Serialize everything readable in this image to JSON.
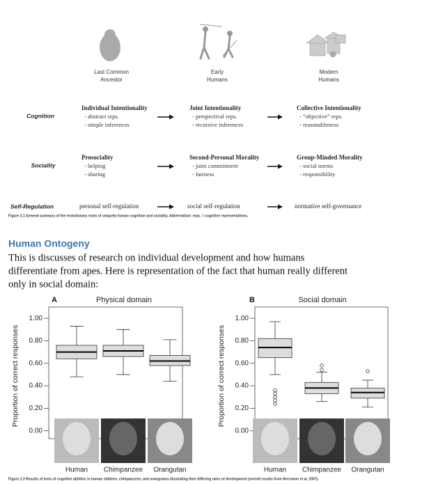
{
  "figure1": {
    "columns": [
      [
        "Last Common",
        "Ancestor"
      ],
      [
        "Early",
        "Humans"
      ],
      [
        "Modern",
        "Humans"
      ]
    ],
    "rows": [
      {
        "label": "Cognition",
        "cells": [
          {
            "title": "Individual Intentionality",
            "items": [
              "- abstract reps.",
              "- simple inferences"
            ]
          },
          {
            "title": "Joint Intentionality",
            "items": [
              "- perspectival reps.",
              "- recursive inferences"
            ]
          },
          {
            "title": "Collective Intentionality",
            "items": [
              "- “objective” reps.",
              "- reasonableness"
            ]
          }
        ]
      },
      {
        "label": "Sociality",
        "cells": [
          {
            "title": "Prosociality",
            "items": [
              "- helping",
              "- sharing"
            ]
          },
          {
            "title": "Second-Personal Morality",
            "items": [
              "- joint commitment",
              "- fairness"
            ]
          },
          {
            "title": "Group-Minded Morality",
            "items": [
              "- social norms",
              "- responsibility"
            ]
          }
        ]
      },
      {
        "label": "Self-Regulation",
        "cells": [
          {
            "title": "personal self-regulation",
            "items": []
          },
          {
            "title": "social self-regulation",
            "items": []
          },
          {
            "title": "normative self-governance",
            "items": []
          }
        ]
      }
    ],
    "caption": "Figure 2.1  General summary of the evolutionary roots of uniquely human cognition and sociality. Abbreviation: reps. = cognitive representations."
  },
  "heading": "Human Ontogeny",
  "paragraph": [
    "This is discusses of research on individual development and how humans",
    "differentiate from apes. Here is representation of the fact that human really different",
    "only in social domain:"
  ],
  "figure2": {
    "y_label": "Proportion of correct responses",
    "ylim": [
      -0.07,
      1.1
    ],
    "yticks": [
      {
        "value": 0,
        "label": "0.00"
      },
      {
        "value": 0.2,
        "label": "0.20"
      },
      {
        "value": 0.4,
        "label": "0.40"
      },
      {
        "value": 0.6,
        "label": "0.60"
      },
      {
        "value": 0.8,
        "label": "0.80"
      },
      {
        "value": 1,
        "label": "1.00"
      }
    ],
    "categories": [
      "Human",
      "Chimpanzee",
      "Orangutan"
    ],
    "panels": [
      {
        "letter": "A",
        "title": "Physical domain",
        "boxes": [
          {
            "min": 0.48,
            "q1": 0.64,
            "median": 0.7,
            "q3": 0.76,
            "max": 0.93,
            "outliers": []
          },
          {
            "min": 0.5,
            "q1": 0.66,
            "median": 0.71,
            "q3": 0.76,
            "max": 0.9,
            "outliers": []
          },
          {
            "min": 0.44,
            "q1": 0.58,
            "median": 0.62,
            "q3": 0.67,
            "max": 0.81,
            "outliers": []
          }
        ]
      },
      {
        "letter": "B",
        "title": "Social domain",
        "boxes": [
          {
            "min": 0.5,
            "q1": 0.65,
            "median": 0.74,
            "q3": 0.82,
            "max": 0.97,
            "outliers": [
              0.24,
              0.27,
              0.3,
              0.33,
              0.36
            ]
          },
          {
            "min": 0.26,
            "q1": 0.33,
            "median": 0.38,
            "q3": 0.43,
            "max": 0.52,
            "outliers": [
              0.54,
              0.58
            ]
          },
          {
            "min": 0.21,
            "q1": 0.29,
            "median": 0.34,
            "q3": 0.38,
            "max": 0.45,
            "outliers": [
              0.53
            ]
          }
        ]
      }
    ],
    "caption": "Figure 2.3  Results of tests of cognitive abilities in human children, chimpanzees, and orangutans illustrating their differing rates of development (overall results from Herrmann et al. 2007)."
  }
}
